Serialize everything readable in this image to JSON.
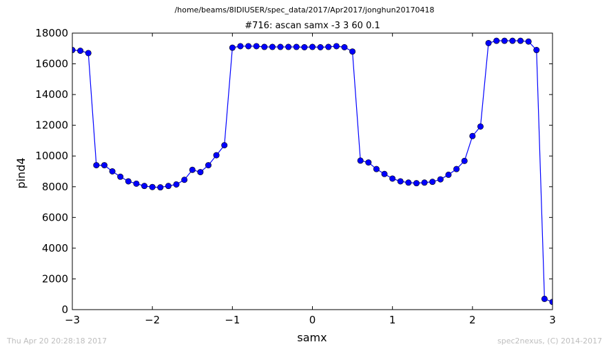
{
  "header": {
    "path": "/home/beams/8IDIUSER/spec_data/2017/Apr2017/jonghun20170418"
  },
  "footer": {
    "timestamp": "Thu Apr 20 20:28:18 2017",
    "credit": "spec2nexus, (C) 2014-2017"
  },
  "colors": {
    "series": "#0000ff",
    "axis": "#000000",
    "footer_text": "#bdbdbd"
  },
  "chart_data": {
    "type": "line",
    "title": "#716: ascan  samx -3 3  60 0.1",
    "xlabel": "samx",
    "ylabel": "pind4",
    "xlim": [
      -3,
      3
    ],
    "ylim": [
      0,
      18000
    ],
    "x_ticks": [
      -3,
      -2,
      -1,
      0,
      1,
      2,
      3
    ],
    "x_tick_labels": [
      "−3",
      "−2",
      "−1",
      "0",
      "1",
      "2",
      "3"
    ],
    "y_ticks": [
      0,
      2000,
      4000,
      6000,
      8000,
      10000,
      12000,
      14000,
      16000,
      18000
    ],
    "y_tick_labels": [
      "0",
      "2000",
      "4000",
      "6000",
      "8000",
      "10000",
      "12000",
      "14000",
      "16000",
      "18000"
    ],
    "grid": false,
    "marker": "circle",
    "series": [
      {
        "x": [
          -3.0,
          -2.9,
          -2.8,
          -2.7,
          -2.6,
          -2.5,
          -2.4,
          -2.3,
          -2.2,
          -2.1,
          -2.0,
          -1.9,
          -1.8,
          -1.7,
          -1.6,
          -1.5,
          -1.4,
          -1.3,
          -1.2,
          -1.1,
          -1.0,
          -0.9,
          -0.8,
          -0.7,
          -0.6,
          -0.5,
          -0.4,
          -0.3,
          -0.2,
          -0.1,
          0.0,
          0.1,
          0.2,
          0.3,
          0.4,
          0.5,
          0.6,
          0.7,
          0.8,
          0.9,
          1.0,
          1.1,
          1.2,
          1.3,
          1.4,
          1.5,
          1.6,
          1.7,
          1.8,
          1.9,
          2.0,
          2.1,
          2.2,
          2.3,
          2.4,
          2.5,
          2.6,
          2.7,
          2.8,
          2.9,
          3.0
        ],
        "y": [
          16900,
          16850,
          16700,
          9400,
          9400,
          9000,
          8650,
          8350,
          8200,
          8050,
          7980,
          7960,
          8050,
          8150,
          8450,
          9100,
          8950,
          9400,
          10050,
          10700,
          17050,
          17150,
          17150,
          17150,
          17100,
          17100,
          17100,
          17100,
          17100,
          17080,
          17100,
          17080,
          17100,
          17150,
          17080,
          16800,
          9700,
          9580,
          9150,
          8830,
          8530,
          8350,
          8270,
          8230,
          8270,
          8320,
          8480,
          8780,
          9150,
          9680,
          11300,
          11920,
          17350,
          17500,
          17500,
          17500,
          17500,
          17450,
          16900,
          700,
          500
        ]
      }
    ]
  }
}
